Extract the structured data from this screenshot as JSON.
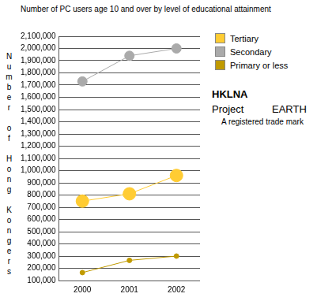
{
  "chart_data": {
    "type": "line",
    "title": "Number of PC users age 10 and over by level of educational attainment",
    "y_label": "Number of Hong Kongers",
    "categories": [
      "2000",
      "2001",
      "2002"
    ],
    "series": [
      {
        "name": "Tertiary",
        "color": "#ffcc33",
        "values": [
          750000,
          810000,
          960000
        ]
      },
      {
        "name": "Secondary",
        "color": "#aaaaaa",
        "values": [
          1730000,
          1940000,
          2000000
        ]
      },
      {
        "name": "Primary or less",
        "color": "#c09a00",
        "values": [
          165000,
          265000,
          300000
        ]
      }
    ],
    "ylim": [
      100000,
      2100000
    ],
    "yticks": [
      {
        "value": 100000,
        "label": "100,000"
      },
      {
        "value": 200000,
        "label": "200,000"
      },
      {
        "value": 300000,
        "label": "300,000"
      },
      {
        "value": 400000,
        "label": "400,000"
      },
      {
        "value": 500000,
        "label": "500,000"
      },
      {
        "value": 600000,
        "label": "600,000"
      },
      {
        "value": 700000,
        "label": "700,000"
      },
      {
        "value": 800000,
        "label": "800,000"
      },
      {
        "value": 900000,
        "label": "900,000"
      },
      {
        "value": 1000000,
        "label": "1,000,000"
      },
      {
        "value": 1100000,
        "label": "1,100,000"
      },
      {
        "value": 1200000,
        "label": "1,200,000"
      },
      {
        "value": 1300000,
        "label": "1,300,000"
      },
      {
        "value": 1400000,
        "label": "1,400,000"
      },
      {
        "value": 1500000,
        "label": "1,500,000"
      },
      {
        "value": 1600000,
        "label": "1,600,000"
      },
      {
        "value": 1700000,
        "label": "1,700,000"
      },
      {
        "value": 1800000,
        "label": "1,800,000"
      },
      {
        "value": 1900000,
        "label": "1,900,000"
      },
      {
        "value": 2000000,
        "label": "2,000,000"
      },
      {
        "value": 2100000,
        "label": "2,100,000"
      }
    ],
    "grid": true,
    "legend": "upper right",
    "marker": "circle",
    "annotations": [
      "HKLNA",
      "Project",
      "EARTH",
      "A registered trade mark"
    ]
  }
}
